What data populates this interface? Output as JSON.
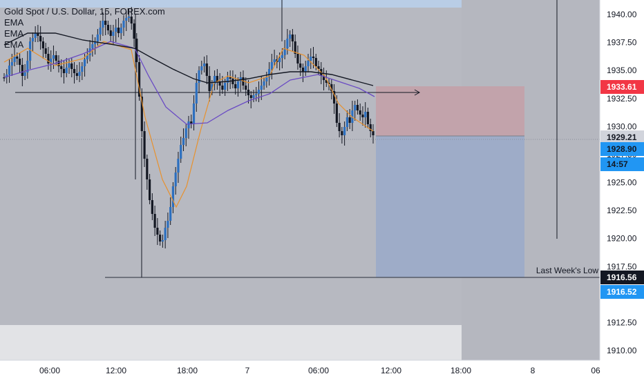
{
  "header": {
    "symbol_title": "Gold Spot / U.S. Dollar, 15, FOREX.com",
    "indicators": [
      "EMA",
      "EMA",
      "EMA"
    ]
  },
  "price_axis": {
    "ticks": [
      "1940.00",
      "1937.50",
      "1935.00",
      "1932.50",
      "1930.00",
      "1927.50",
      "1925.00",
      "1922.50",
      "1920.00",
      "1917.50",
      "1912.50",
      "1910.00"
    ],
    "tick_values": [
      1940.0,
      1937.5,
      1935.0,
      1932.5,
      1930.0,
      1927.5,
      1925.0,
      1922.5,
      1920.0,
      1917.5,
      1912.5,
      1910.0
    ]
  },
  "time_axis": {
    "labels": [
      "06:00",
      "12:00",
      "18:00",
      "7",
      "06:00",
      "12:00",
      "18:00",
      "8",
      "06"
    ]
  },
  "price_badges": [
    {
      "text": "1933.61",
      "price": 1933.61,
      "bg": "#f23645",
      "color": "#ffffff"
    },
    {
      "text": "1929.21",
      "price": 1929.21,
      "bg": "#d1d4dc",
      "color": "#131722"
    },
    {
      "text": "1928.90",
      "price": 1928.9,
      "bg": "#2196f3",
      "color": "#131722"
    },
    {
      "text": "14:57",
      "price": 1927.75,
      "bg": "#2196f3",
      "color": "#131722"
    },
    {
      "text": "1916.56",
      "price": 1916.56,
      "bg": "#131722",
      "color": "#ffffff"
    },
    {
      "text": "1916.52",
      "price": 1916.52,
      "bg": "#2196f3",
      "color": "#ffffff"
    }
  ],
  "annotation": {
    "last_week_low_label": "Last Week's Low",
    "last_week_low_price": 1916.56
  },
  "position_tool": {
    "stop_price": 1933.61,
    "entry_price": 1929.21,
    "target_price": 1916.56
  },
  "colors": {
    "chart_bg": "#b7b9c1",
    "axis_bg": "#ffffff",
    "profit_zone": "#9eacc8",
    "loss_zone": "#c2a3ab",
    "ema_fast": "#e8912d",
    "ema_mid": "#6a4bc4",
    "ema_slow": "#131722",
    "candle": "#1b4f8c"
  }
}
